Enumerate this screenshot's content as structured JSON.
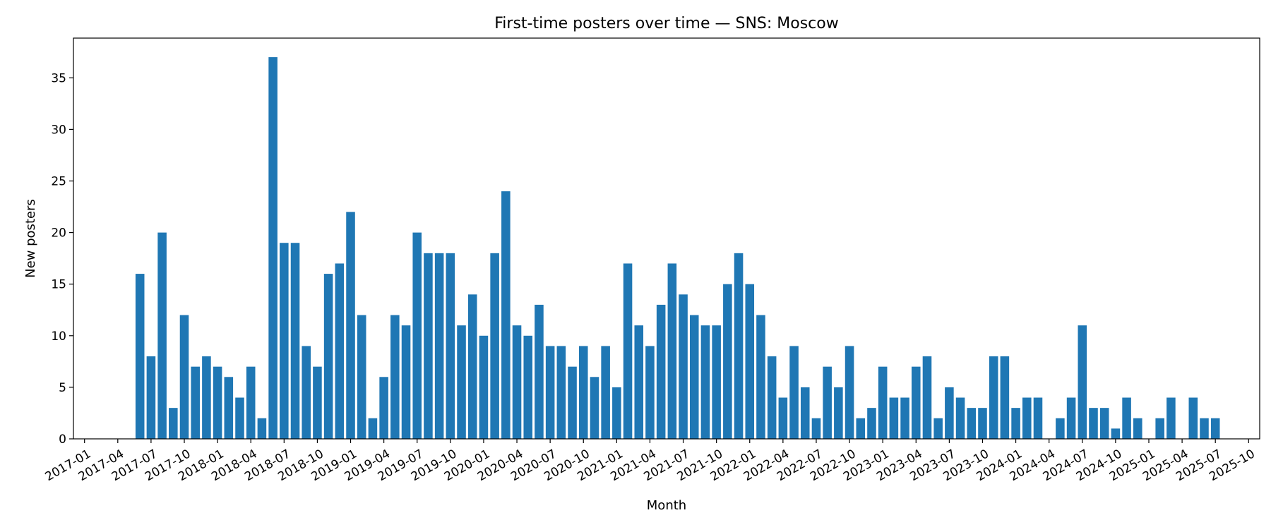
{
  "chart_data": {
    "type": "bar",
    "title": "First-time posters over time — SNS: Moscow",
    "xlabel": "Month",
    "ylabel": "New posters",
    "bar_color": "#1f77b4",
    "grid": false,
    "legend": "none",
    "ylim": [
      0,
      38.85
    ],
    "xlim": [
      "2016-12",
      "2025-11"
    ],
    "y_ticks": [
      0,
      5,
      10,
      15,
      20,
      25,
      30,
      35
    ],
    "x_ticks": [
      "2017-01",
      "2017-04",
      "2017-07",
      "2017-10",
      "2018-01",
      "2018-04",
      "2018-07",
      "2018-10",
      "2019-01",
      "2019-04",
      "2019-07",
      "2019-10",
      "2020-01",
      "2020-04",
      "2020-07",
      "2020-10",
      "2021-01",
      "2021-04",
      "2021-07",
      "2021-10",
      "2022-01",
      "2022-04",
      "2022-07",
      "2022-10",
      "2023-01",
      "2023-04",
      "2023-07",
      "2023-10",
      "2024-01",
      "2024-04",
      "2024-07",
      "2024-10",
      "2025-01",
      "2025-04",
      "2025-07",
      "2025-10"
    ],
    "categories": [
      "2017-06",
      "2017-07",
      "2017-08",
      "2017-09",
      "2017-10",
      "2017-11",
      "2017-12",
      "2018-01",
      "2018-02",
      "2018-03",
      "2018-04",
      "2018-05",
      "2018-06",
      "2018-07",
      "2018-08",
      "2018-09",
      "2018-10",
      "2018-11",
      "2018-12",
      "2019-01",
      "2019-02",
      "2019-03",
      "2019-04",
      "2019-05",
      "2019-06",
      "2019-07",
      "2019-08",
      "2019-09",
      "2019-10",
      "2019-11",
      "2019-12",
      "2020-01",
      "2020-02",
      "2020-03",
      "2020-04",
      "2020-05",
      "2020-06",
      "2020-07",
      "2020-08",
      "2020-09",
      "2020-10",
      "2020-11",
      "2020-12",
      "2021-01",
      "2021-02",
      "2021-03",
      "2021-04",
      "2021-05",
      "2021-06",
      "2021-07",
      "2021-08",
      "2021-09",
      "2021-10",
      "2021-11",
      "2021-12",
      "2022-01",
      "2022-02",
      "2022-03",
      "2022-04",
      "2022-05",
      "2022-06",
      "2022-07",
      "2022-08",
      "2022-09",
      "2022-10",
      "2022-11",
      "2022-12",
      "2023-01",
      "2023-02",
      "2023-03",
      "2023-04",
      "2023-05",
      "2023-06",
      "2023-07",
      "2023-08",
      "2023-09",
      "2023-10",
      "2023-11",
      "2023-12",
      "2024-01",
      "2024-02",
      "2024-03",
      "2024-05",
      "2024-06",
      "2024-07",
      "2024-08",
      "2024-09",
      "2024-10",
      "2024-11",
      "2024-12",
      "2025-02",
      "2025-03",
      "2025-05",
      "2025-06",
      "2025-07"
    ],
    "values": [
      16,
      8,
      20,
      3,
      12,
      7,
      8,
      7,
      6,
      4,
      7,
      2,
      37,
      19,
      19,
      9,
      7,
      16,
      17,
      22,
      12,
      2,
      6,
      12,
      11,
      20,
      18,
      18,
      18,
      11,
      14,
      10,
      18,
      24,
      11,
      10,
      13,
      9,
      9,
      7,
      9,
      6,
      9,
      5,
      17,
      11,
      9,
      13,
      17,
      14,
      12,
      11,
      11,
      15,
      18,
      15,
      12,
      8,
      4,
      9,
      5,
      2,
      7,
      5,
      9,
      2,
      3,
      7,
      4,
      4,
      7,
      8,
      2,
      5,
      4,
      3,
      3,
      8,
      8,
      3,
      4,
      4,
      2,
      4,
      11,
      3,
      3,
      1,
      4,
      2,
      2,
      4,
      4,
      2,
      2
    ]
  }
}
